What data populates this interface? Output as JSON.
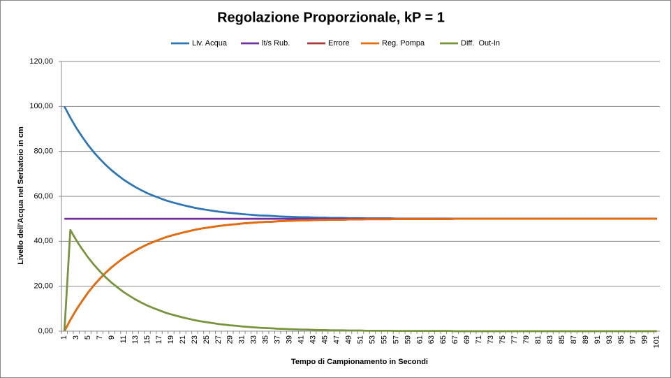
{
  "chart_data": {
    "type": "line",
    "title": "Regolazione Proporzionale, kP = 1",
    "x_label": "Tempo di Campionamento in Secondi",
    "y_label": "Livello dell'Acqua nel Serbatoio in cm",
    "legend_position": "top",
    "grid": true,
    "categories": [
      "1",
      null,
      "3",
      null,
      "5",
      null,
      "7",
      null,
      "9",
      null,
      "11",
      null,
      "13",
      null,
      "15",
      null,
      "17",
      null,
      "19",
      null,
      "21",
      null,
      "23",
      null,
      "25",
      null,
      "27",
      null,
      "29",
      null,
      "31",
      null,
      "33",
      null,
      "35",
      null,
      "37",
      null,
      "39",
      null,
      "41",
      null,
      "43",
      null,
      "45",
      null,
      "47",
      null,
      "49",
      null,
      "51",
      null,
      "53",
      null,
      "55",
      null,
      "57",
      null,
      "59",
      null,
      "61",
      null,
      "63",
      null,
      "65",
      null,
      "67",
      null,
      "69",
      null,
      "71",
      null,
      "73",
      null,
      "75",
      null,
      "77",
      null,
      "79",
      null,
      "81",
      null,
      "83",
      null,
      "85",
      null,
      "87",
      null,
      "89",
      null,
      "91",
      null,
      "93",
      null,
      "95",
      null,
      "97",
      null,
      "99",
      null,
      "101"
    ],
    "ylim": [
      0,
      120
    ],
    "yticks": [
      {
        "value": 0,
        "label": "0,00"
      },
      {
        "value": 20,
        "label": "20,00"
      },
      {
        "value": 40,
        "label": "40,00"
      },
      {
        "value": 60,
        "label": "60,00"
      },
      {
        "value": 80,
        "label": "80,00"
      },
      {
        "value": 100,
        "label": "100,00"
      },
      {
        "value": 120,
        "label": "120,00"
      }
    ],
    "series": [
      {
        "name": "Liv. Acqua",
        "color": "#2e75b6",
        "values": [
          100,
          95,
          90.5,
          86.5,
          82.8,
          79.5,
          76.6,
          73.9,
          71.5,
          69.4,
          67.4,
          65.7,
          64.1,
          62.7,
          61.4,
          60.3,
          59.3,
          58.3,
          57.5,
          56.8,
          56.1,
          55.5,
          54.9,
          54.4,
          54.0,
          53.6,
          53.2,
          52.9,
          52.6,
          52.4,
          52.1,
          51.9,
          51.7,
          51.5,
          51.4,
          51.3,
          51.1,
          51.0,
          50.9,
          50.8,
          50.7,
          50.7,
          50.6,
          50.5,
          50.5,
          50.4,
          50.4,
          50.4,
          50.3,
          50.3,
          50.3,
          50.2,
          50.2,
          50.2,
          50.2,
          50.2,
          50.1,
          50.1,
          50.1,
          50.1,
          50.1,
          50.1,
          50.1,
          50.1,
          50.1,
          50.1,
          50,
          50,
          50,
          50,
          50,
          50,
          50,
          50,
          50,
          50,
          50,
          50,
          50,
          50,
          50,
          50,
          50,
          50,
          50,
          50,
          50,
          50,
          50,
          50,
          50,
          50,
          50,
          50,
          50,
          50,
          50,
          50,
          50,
          50,
          50
        ]
      },
      {
        "name": "lt/s Rub.",
        "color": "#7030a0",
        "values": [
          50,
          50,
          50,
          50,
          50,
          50,
          50,
          50,
          50,
          50,
          50,
          50,
          50,
          50,
          50,
          50,
          50,
          50,
          50,
          50,
          50,
          50,
          50,
          50,
          50,
          50,
          50,
          50,
          50,
          50,
          50,
          50,
          50,
          50,
          50,
          50,
          50,
          50,
          50,
          50,
          50,
          50,
          50,
          50,
          50,
          50,
          50,
          50,
          50,
          50,
          50,
          50,
          50,
          50,
          50,
          50,
          50,
          50,
          50,
          50,
          50,
          50,
          50,
          50,
          50,
          50,
          50,
          50,
          50,
          50,
          50,
          50,
          50,
          50,
          50,
          50,
          50,
          50,
          50,
          50,
          50,
          50,
          50,
          50,
          50,
          50,
          50,
          50,
          50,
          50,
          50,
          50,
          50,
          50,
          50,
          50,
          50,
          50,
          50,
          50,
          50
        ]
      },
      {
        "name": "Errore",
        "color": "#a5393a",
        "values": [
          0,
          5,
          9.5,
          13.5,
          17.2,
          20.5,
          23.4,
          26.1,
          28.5,
          30.6,
          32.6,
          34.3,
          35.9,
          37.3,
          38.6,
          39.7,
          40.7,
          41.7,
          42.5,
          43.2,
          43.9,
          44.5,
          45.1,
          45.6,
          46.0,
          46.4,
          46.8,
          47.1,
          47.4,
          47.6,
          47.9,
          48.1,
          48.3,
          48.5,
          48.6,
          48.7,
          48.9,
          49.0,
          49.1,
          49.2,
          49.3,
          49.3,
          49.4,
          49.5,
          49.5,
          49.6,
          49.6,
          49.6,
          49.7,
          49.7,
          49.7,
          49.8,
          49.8,
          49.8,
          49.8,
          49.8,
          49.9,
          49.9,
          49.9,
          49.9,
          49.9,
          49.9,
          49.9,
          49.9,
          49.9,
          49.9,
          50,
          50,
          50,
          50,
          50,
          50,
          50,
          50,
          50,
          50,
          50,
          50,
          50,
          50,
          50,
          50,
          50,
          50,
          50,
          50,
          50,
          50,
          50,
          50,
          50,
          50,
          50,
          50,
          50,
          50,
          50,
          50,
          50,
          50,
          50
        ]
      },
      {
        "name": "Reg. Pompa",
        "color": "#e46c0a",
        "values": [
          0,
          5,
          9.5,
          13.5,
          17.2,
          20.5,
          23.4,
          26.1,
          28.5,
          30.6,
          32.6,
          34.3,
          35.9,
          37.3,
          38.6,
          39.7,
          40.7,
          41.7,
          42.5,
          43.2,
          43.9,
          44.5,
          45.1,
          45.6,
          46.0,
          46.4,
          46.8,
          47.1,
          47.4,
          47.6,
          47.9,
          48.1,
          48.3,
          48.5,
          48.6,
          48.7,
          48.9,
          49.0,
          49.1,
          49.2,
          49.3,
          49.3,
          49.4,
          49.5,
          49.5,
          49.6,
          49.6,
          49.6,
          49.7,
          49.7,
          49.7,
          49.8,
          49.8,
          49.8,
          49.8,
          49.8,
          49.9,
          49.9,
          49.9,
          49.9,
          49.9,
          49.9,
          49.9,
          49.9,
          49.9,
          49.9,
          50,
          50,
          50,
          50,
          50,
          50,
          50,
          50,
          50,
          50,
          50,
          50,
          50,
          50,
          50,
          50,
          50,
          50,
          50,
          50,
          50,
          50,
          50,
          50,
          50,
          50,
          50,
          50,
          50,
          50,
          50,
          50,
          50,
          50,
          50
        ]
      },
      {
        "name": "Diff.  Out-In",
        "color": "#77933c",
        "values": [
          0,
          45,
          40.5,
          36.5,
          32.8,
          29.5,
          26.6,
          23.9,
          21.5,
          19.4,
          17.4,
          15.7,
          14.1,
          12.7,
          11.4,
          10.3,
          9.3,
          8.3,
          7.5,
          6.8,
          6.1,
          5.5,
          4.9,
          4.4,
          4.0,
          3.6,
          3.2,
          2.9,
          2.6,
          2.4,
          2.1,
          1.9,
          1.7,
          1.5,
          1.4,
          1.3,
          1.1,
          1.0,
          0.9,
          0.8,
          0.7,
          0.7,
          0.6,
          0.5,
          0.5,
          0.4,
          0.4,
          0.4,
          0.3,
          0.3,
          0.3,
          0.2,
          0.2,
          0.2,
          0.2,
          0.2,
          0.1,
          0.1,
          0.1,
          0.1,
          0.1,
          0.1,
          0.1,
          0.1,
          0.1,
          0.1,
          0,
          0,
          0,
          0,
          0,
          0,
          0,
          0,
          0,
          0,
          0,
          0,
          0,
          0,
          0,
          0,
          0,
          0,
          0,
          0,
          0,
          0,
          0,
          0,
          0,
          0,
          0,
          0,
          0,
          0,
          0,
          0,
          0,
          0,
          0
        ]
      }
    ]
  }
}
